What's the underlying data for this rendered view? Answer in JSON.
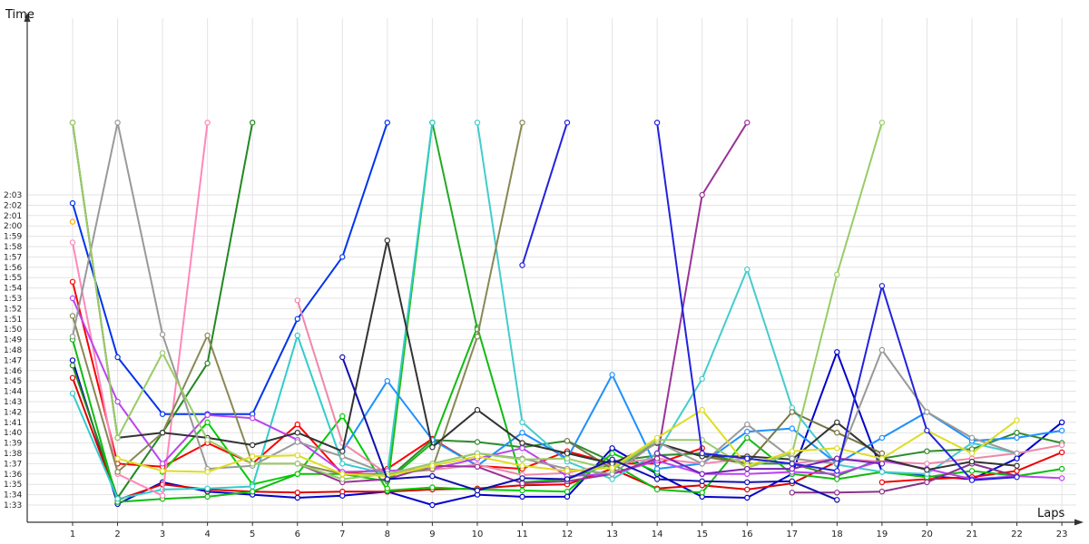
{
  "chart_data": {
    "type": "line",
    "xlabel": "Laps",
    "ylabel": "Time",
    "x": [
      1,
      2,
      3,
      4,
      5,
      6,
      7,
      8,
      9,
      10,
      11,
      12,
      13,
      14,
      15,
      16,
      17,
      18,
      19,
      20,
      21,
      22,
      23
    ],
    "y_ticks": [
      "1:33",
      "1:34",
      "1:35",
      "1:36",
      "1:37",
      "1:38",
      "1:39",
      "1:40",
      "1:41",
      "1:42",
      "1:43",
      "1:44",
      "1:45",
      "1:46",
      "1:47",
      "1:48",
      "1:49",
      "1:50",
      "1:51",
      "1:52",
      "1:53",
      "1:54",
      "1:55",
      "1:56",
      "1:57",
      "1:58",
      "1:59",
      "2:00",
      "2:01",
      "2:02",
      "2:03"
    ],
    "ylim": [
      "1:32",
      "2:06"
    ],
    "grid": true,
    "legend": "none",
    "series": [
      {
        "color": "#0000cc",
        "values": [
          "1:47",
          "1:33.1",
          "1:35.2",
          "1:34.3",
          "1:34",
          "1:33.7",
          "1:33.9",
          "1:34.3",
          "1:33",
          "1:34",
          "1:33.8",
          "1:33.8",
          "1:38.5",
          "1:36",
          "1:33.8",
          "1:33.7",
          "1:36",
          "1:47.8",
          "1:36.2",
          "1:35.8",
          "1:35.5",
          "1:37.5",
          "1:41"
        ]
      },
      {
        "color": "#0033ee",
        "values": [
          "2:02.2",
          "1:47.3",
          "1:41.8",
          "1:41.8",
          "1:41.8",
          "1:51",
          "1:57",
          "2:10",
          null,
          null,
          null,
          null,
          null,
          null,
          null,
          null,
          null,
          null,
          null,
          null,
          null,
          null,
          null
        ]
      },
      {
        "color": "#ff0000",
        "values": [
          "1:54.6",
          "1:37",
          "1:36.7",
          "1:39",
          "1:37",
          "1:40.8",
          "1:36",
          "1:36.5",
          "1:39.4",
          "1:36.8",
          "1:36.5",
          "1:38.2",
          "1:37",
          "1:37",
          "1:38.5",
          null,
          null,
          null,
          null,
          null,
          null,
          null,
          null
        ]
      },
      {
        "color": "#ee0000",
        "values": [
          null,
          null,
          null,
          null,
          null,
          null,
          null,
          null,
          null,
          null,
          null,
          null,
          null,
          null,
          null,
          null,
          null,
          null,
          "1:35.2",
          "1:35.5",
          "1:35.7",
          "1:36.3",
          "1:38.1"
        ]
      },
      {
        "color": "#dd0000",
        "values": [
          "1:45.3",
          "1:33.5",
          "1:35",
          "1:34.5",
          "1:34.3",
          "1:34.2",
          "1:34.3",
          "1:34.3",
          "1:34.5",
          "1:34.6",
          "1:34.9",
          "1:35",
          "1:36.5",
          "1:34.6",
          "1:34.9",
          "1:34.5",
          "1:35.1",
          "1:37.2",
          null,
          null,
          null,
          null,
          null
        ]
      },
      {
        "color": "#228822",
        "values": [
          "1:46.5",
          "1:33.7",
          "1:40",
          "1:46.7",
          "2:10",
          null,
          null,
          null,
          null,
          null,
          null,
          null,
          null,
          null,
          null,
          null,
          null,
          null,
          null,
          null,
          null,
          null,
          null
        ]
      },
      {
        "color": "#2e8b2e",
        "values": [
          null,
          null,
          null,
          null,
          null,
          null,
          null,
          "1:35.5",
          "1:39.3",
          "1:39.1",
          "1:38.6",
          "1:39.2",
          "1:37.2",
          "1:37.8",
          "1:38",
          "1:37",
          "1:37",
          "1:35.8",
          "1:37.5",
          "1:38.2",
          "1:38.4",
          "1:40",
          "1:39"
        ]
      },
      {
        "color": "#11bb11",
        "values": [
          "1:49",
          "1:33.3",
          "1:33.6",
          "1:33.8",
          "1:34.3",
          "1:36",
          "1:36",
          "1:35.3",
          "1:39",
          "1:50.2",
          "1:35.2",
          "1:35.5",
          "1:37",
          "1:34.5",
          "1:34.2",
          "1:39.5",
          "1:36",
          "1:35.5",
          "1:36.2",
          "1:35.7",
          "1:36.3",
          "1:35.8",
          "1:36.5"
        ]
      },
      {
        "color": "#00cc00",
        "values": [
          null,
          null,
          "1:36.2",
          "1:41",
          "1:35",
          "1:36",
          "1:41.6",
          "1:34.4",
          "1:34.7",
          "1:34.5",
          "1:34.4",
          "1:34.3",
          "1:38",
          "1:36.2",
          null,
          null,
          null,
          null,
          null,
          null,
          null,
          null,
          null
        ]
      },
      {
        "color": "#22bb00",
        "values": [
          null,
          null,
          null,
          null,
          null,
          null,
          null,
          "1:34.6",
          "2:10",
          null,
          null,
          null,
          null,
          null,
          null,
          null,
          null,
          null,
          null,
          null,
          null,
          null,
          null
        ]
      },
      {
        "color": "#22aa22",
        "values": [
          null,
          null,
          null,
          null,
          null,
          null,
          null,
          null,
          "2:10",
          "1:50",
          null,
          null,
          null,
          null,
          null,
          null,
          null,
          null,
          null,
          null,
          null,
          null,
          null
        ]
      },
      {
        "color": "#33cccc",
        "values": [
          "1:43.8",
          "1:33.6",
          "1:34.5",
          "1:34.6",
          "1:34.8",
          "1:49.4",
          "1:37",
          "1:36",
          "2:10",
          null,
          null,
          null,
          null,
          null,
          null,
          null,
          null,
          null,
          null,
          null,
          null,
          null,
          null
        ]
      },
      {
        "color": "#44cccc",
        "values": [
          null,
          null,
          null,
          null,
          null,
          null,
          null,
          null,
          null,
          "2:10",
          "1:41",
          "1:37.2",
          "1:35.5",
          "1:38",
          "1:45.2",
          "1:55.8",
          "1:42.4",
          "1:36.9",
          "1:36.2",
          "1:36",
          "1:39",
          "1:38",
          null
        ]
      },
      {
        "color": "#1e90ff",
        "values": [
          null,
          null,
          null,
          null,
          null,
          null,
          "1:38.2",
          "1:45",
          "1:39.3",
          "1:36.8",
          "1:40",
          "1:37.5",
          "1:45.6",
          "1:36.5",
          "1:37",
          "1:40.1",
          "1:40.4",
          "1:37",
          "1:39.5",
          "1:42",
          "1:39.2",
          "1:39.5",
          "1:40.2"
        ]
      },
      {
        "color": "#ff88bb",
        "values": [
          "1:58.4",
          "1:36",
          "1:33.9",
          "2:10",
          null,
          null,
          null,
          null,
          null,
          null,
          null,
          null,
          null,
          null,
          null,
          null,
          null,
          null,
          null,
          null,
          null,
          null,
          null
        ]
      },
      {
        "color": "#ee88aa",
        "values": [
          null,
          null,
          null,
          null,
          null,
          "1:52.8",
          "1:39",
          "1:36",
          "1:36.4",
          "1:36.9",
          "1:35.9",
          "1:36.1",
          "1:37",
          "1:37.5",
          "1:37",
          "1:37.5",
          "1:37",
          "1:37.5",
          "1:37.2",
          "1:37",
          "1:37.5",
          "1:38",
          "1:38.8"
        ]
      },
      {
        "color": "#bb44ee",
        "values": [
          "1:53",
          "1:43",
          "1:37",
          "1:41.7",
          "1:41.4",
          "1:39.3",
          "1:36.2",
          "1:36.3",
          "1:36.5",
          "1:37.5",
          "1:38.5",
          "1:35.8",
          "1:36",
          "1:37.3",
          "1:36",
          "1:36",
          "1:36.2",
          "1:36",
          "1:37.3",
          "1:36.5",
          "1:35.5",
          "1:35.8",
          "1:35.6"
        ]
      },
      {
        "color": "#993399",
        "values": [
          null,
          null,
          null,
          null,
          null,
          "1:37",
          "1:35.2",
          "1:35.5",
          "1:36.8",
          "1:36.7",
          "1:35.1",
          "1:35.3",
          "1:36",
          "1:37.5",
          "2:03",
          "2:10",
          null,
          null,
          null,
          null,
          null,
          null,
          null
        ]
      },
      {
        "color": "#883388",
        "values": [
          null,
          null,
          null,
          null,
          null,
          null,
          null,
          null,
          null,
          null,
          null,
          null,
          null,
          null,
          null,
          null,
          "1:34.2",
          "1:34.2",
          "1:34.3",
          "1:35.2",
          "1:37",
          "1:35.8",
          null
        ]
      },
      {
        "color": "#888855",
        "values": [
          "1:51.3",
          "1:36.2",
          "1:40",
          "1:49.4",
          "1:37",
          "1:37",
          "1:36",
          "1:36",
          "1:36.5",
          "1:49.3",
          "2:10",
          null,
          null,
          null,
          null,
          null,
          null,
          null,
          null,
          null,
          null,
          null,
          null
        ]
      },
      {
        "color": "#777744",
        "values": [
          null,
          null,
          null,
          null,
          null,
          null,
          null,
          null,
          null,
          null,
          null,
          "1:39.2",
          "1:36.5",
          "1:39",
          "1:37.7",
          "1:37",
          "1:42",
          "1:40",
          "1:38",
          null,
          null,
          null,
          null
        ]
      },
      {
        "color": "#333333",
        "values": [
          "2:10",
          "1:39.5",
          "1:40",
          "1:39.5",
          "1:38.8",
          "1:40",
          "1:38.2",
          "1:58.6",
          "1:38.6",
          "1:42.2",
          "1:39",
          "1:38",
          "1:37",
          "1:39",
          "1:37.7",
          "1:37.7",
          "1:37.4",
          "1:41",
          "1:37.5",
          "1:36.4",
          "1:37.2",
          "1:36.8",
          null
        ]
      },
      {
        "color": "#999999",
        "values": [
          "1:49.3",
          "2:10",
          "1:49.5",
          "1:36.5",
          "1:36.8",
          "1:39.1",
          "1:37.7",
          "1:36",
          "1:37",
          "1:38",
          "1:37.5",
          "1:36.5",
          "1:36",
          "1:39.1",
          "1:37",
          "1:40.8",
          "1:37.5",
          "1:37",
          "1:48",
          "1:42",
          "1:39.5",
          "1:38",
          null
        ]
      },
      {
        "color": "#99cc66",
        "values": [
          "2:10",
          "1:39.5",
          "1:47.7",
          "1:39.3",
          "1:37",
          "1:37",
          "1:35.5",
          "1:36",
          "1:37",
          "1:38",
          "1:37.4",
          "1:37.5",
          "1:36.4",
          "1:39.3",
          "1:39.3",
          "1:36.6",
          "1:38",
          "1:55.3",
          "2:10",
          null,
          null,
          null,
          null
        ]
      },
      {
        "color": "#dddd22",
        "values": [
          null,
          "1:37.5",
          "1:36.3",
          "1:36.2",
          "1:37.7",
          "1:37.8",
          "1:36",
          "1:35.8",
          "1:36.8",
          "1:37.7",
          "1:36.8",
          "1:36.3",
          "1:36.6",
          "1:39.5",
          "1:42.2",
          "1:36.8",
          "1:38.2",
          "1:38.5",
          "1:37.5",
          "1:40.2",
          "1:38",
          "1:41.2",
          null
        ]
      },
      {
        "color": "#ffaa00",
        "values": [
          "2:00.4",
          null,
          null,
          null,
          null,
          null,
          null,
          null,
          null,
          null,
          null,
          null,
          null,
          null,
          null,
          null,
          null,
          null,
          null,
          null,
          null,
          null,
          null
        ]
      },
      {
        "color": "#1111aa",
        "values": [
          null,
          null,
          null,
          null,
          null,
          null,
          "1:47.3",
          "1:35.5",
          "1:35.8",
          "1:34.4",
          "1:35.6",
          "1:35.5",
          "1:37.4",
          "1:35.5",
          "1:35.3",
          "1:35.2",
          "1:35.3",
          "1:33.5",
          null,
          null,
          null,
          null,
          null
        ]
      },
      {
        "color": "#2222dd",
        "values": [
          null,
          null,
          null,
          null,
          null,
          null,
          null,
          null,
          null,
          null,
          "1:56.2",
          "2:10",
          null,
          "2:10",
          "1:38",
          "1:37.5",
          "1:37",
          "1:36.3",
          "1:54.2",
          "1:40.2",
          "1:35.4",
          "1:35.7",
          null
        ]
      },
      {
        "color": "#7722bb",
        "values": [
          null,
          null,
          null,
          null,
          null,
          null,
          null,
          null,
          null,
          null,
          null,
          null,
          null,
          "1:38",
          "1:36",
          "1:36.5",
          "1:36.5",
          "1:37.5",
          "1:37",
          null,
          null,
          null,
          null
        ]
      }
    ]
  }
}
